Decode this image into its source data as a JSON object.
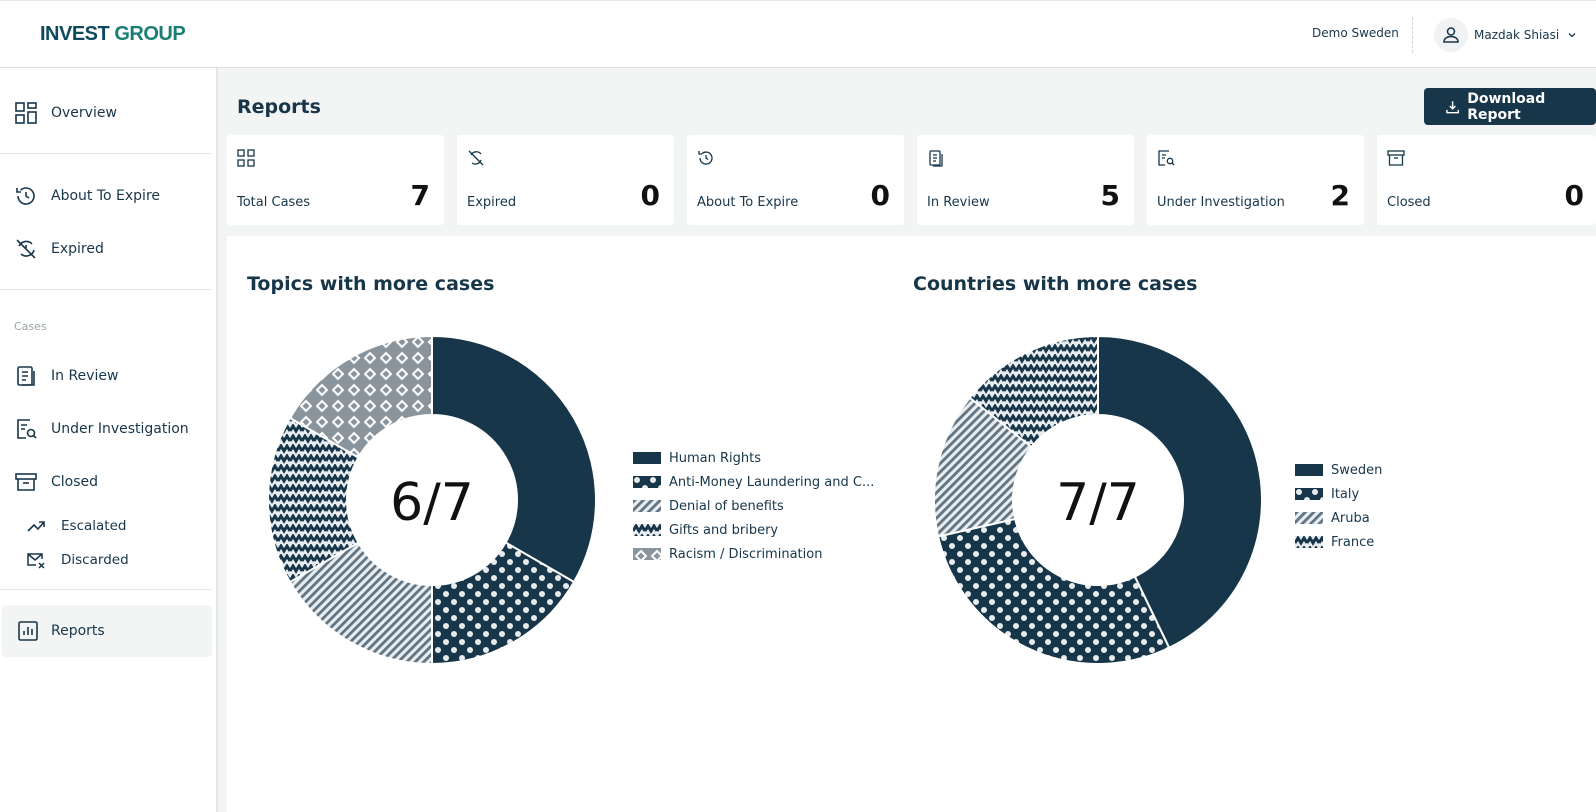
{
  "header": {
    "logo_part1": "INVEST",
    "logo_part2": "GROUP",
    "organization": "Demo Sweden",
    "user_name": "Mazdak Shiasi"
  },
  "sidebar": {
    "overview": "Overview",
    "about_to_expire": "About To Expire",
    "expired": "Expired",
    "section_cases": "Cases",
    "in_review": "In Review",
    "under_investigation": "Under Investigation",
    "closed": "Closed",
    "escalated": "Escalated",
    "discarded": "Discarded",
    "reports": "Reports"
  },
  "page": {
    "title": "Reports",
    "download_label": "Download Report"
  },
  "stats": [
    {
      "label": "Total Cases",
      "value": "7",
      "icon": "grid-icon"
    },
    {
      "label": "Expired",
      "value": "0",
      "icon": "expired-icon"
    },
    {
      "label": "About To Expire",
      "value": "0",
      "icon": "history-icon"
    },
    {
      "label": "In Review",
      "value": "5",
      "icon": "clipboard-icon"
    },
    {
      "label": "Under Investigation",
      "value": "2",
      "icon": "search-document-icon"
    },
    {
      "label": "Closed",
      "value": "0",
      "icon": "archive-icon"
    }
  ],
  "colors": {
    "navy": "#17364a",
    "slate": "#8a949c",
    "accent": "#1a7f73",
    "background": "#f3f4f4"
  },
  "chart_data": [
    {
      "type": "pie",
      "title": "Topics with more cases",
      "center_label": "6/7",
      "categories": [
        "Human Rights",
        "Anti-Money Laundering and C...",
        "Denial of benefits",
        "Gifts and bribery",
        "Racism / Discrimination"
      ],
      "values": [
        2,
        1,
        1,
        1,
        1
      ],
      "patterns": [
        "solid",
        "dots",
        "stripes",
        "zigzag",
        "diamonds"
      ]
    },
    {
      "type": "pie",
      "title": "Countries with more cases",
      "center_label": "7/7",
      "categories": [
        "Sweden",
        "Italy",
        "Aruba",
        "France"
      ],
      "values": [
        3,
        2,
        1,
        1
      ],
      "patterns": [
        "solid",
        "dots",
        "stripes",
        "zigzag"
      ]
    }
  ]
}
